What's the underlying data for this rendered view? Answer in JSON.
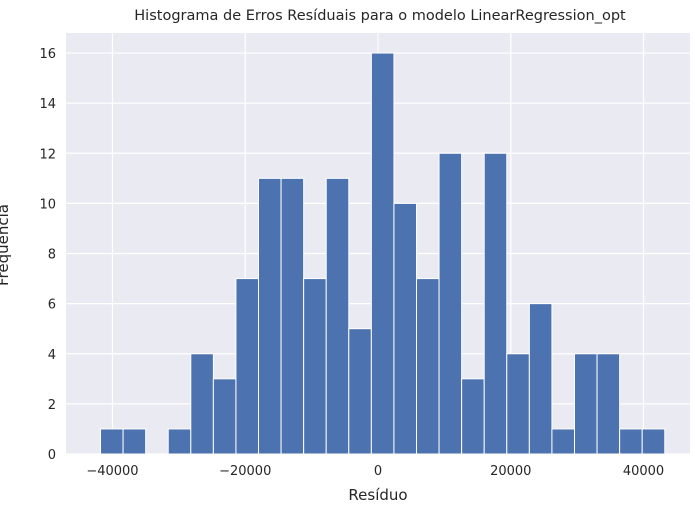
{
  "chart_data": {
    "type": "bar",
    "title": "Histograma de Erros Resíduais para o modelo LinearRegression_opt",
    "xlabel": "Resíduo",
    "ylabel": "Frequência",
    "bin_edges": [
      -41800,
      -38400,
      -35000,
      -31600,
      -28200,
      -24800,
      -21400,
      -18000,
      -14600,
      -11200,
      -7800,
      -4400,
      -1000,
      2400,
      5800,
      9200,
      12600,
      16000,
      19400,
      22800,
      26200,
      29600,
      33000,
      36400,
      39800,
      43200
    ],
    "values": [
      1,
      1,
      0,
      1,
      4,
      3,
      7,
      11,
      11,
      7,
      11,
      5,
      16,
      10,
      7,
      12,
      3,
      12,
      4,
      6,
      1,
      4,
      4,
      1,
      1
    ],
    "xlim": [
      -47000,
      47000
    ],
    "ylim": [
      0,
      16.8
    ],
    "xticks": [
      -40000,
      -20000,
      0,
      20000,
      40000
    ],
    "xtick_labels": [
      "−40000",
      "−20000",
      "0",
      "20000",
      "40000"
    ],
    "yticks": [
      0,
      2,
      4,
      6,
      8,
      10,
      12,
      14,
      16
    ],
    "ytick_labels": [
      "0",
      "2",
      "4",
      "6",
      "8",
      "10",
      "12",
      "14",
      "16"
    ],
    "grid": true,
    "colors": {
      "bar": "#4c72b0",
      "background": "#eaeaf2",
      "grid": "#ffffff"
    }
  }
}
